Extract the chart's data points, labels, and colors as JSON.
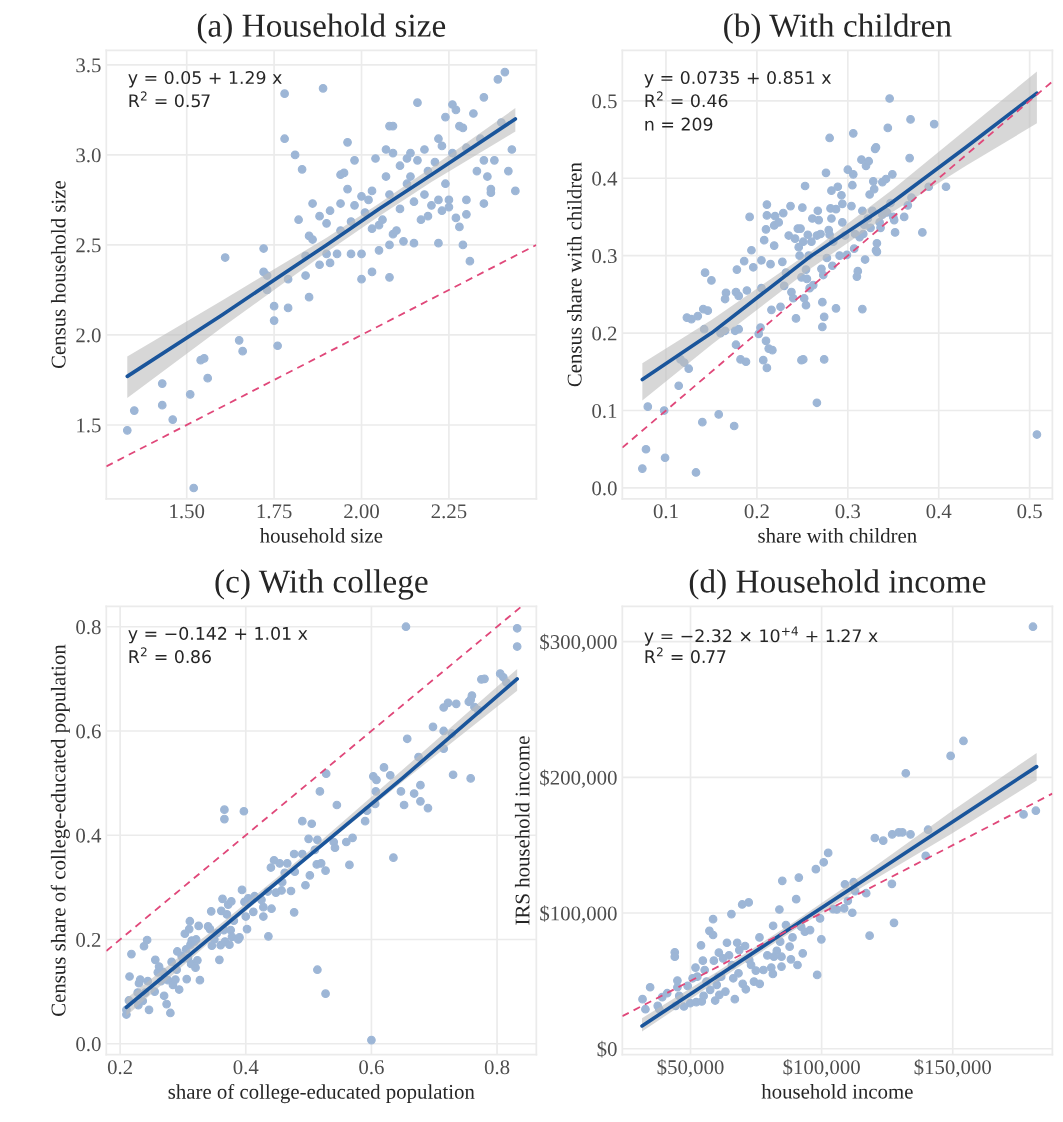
{
  "chart_data": [
    {
      "type": "scatter",
      "title": "(a) Household size",
      "xlabel": "household size",
      "ylabel": "Census household size",
      "grid": true,
      "marker": "circle",
      "xlim": [
        1.27,
        2.5
      ],
      "ylim": [
        1.09,
        3.58
      ],
      "xticks": [
        {
          "value": 1.5,
          "label": "1.50"
        },
        {
          "value": 1.75,
          "label": "1.75"
        },
        {
          "value": 2,
          "label": "2.00"
        },
        {
          "value": 2.25,
          "label": "2.25"
        }
      ],
      "yticks": [
        1.5,
        {
          "value": 2,
          "label": "2.0"
        },
        2.5,
        {
          "value": 3,
          "label": "3.0"
        },
        3.5
      ],
      "annotations": [
        "y = 0.05 + 1.29 x",
        "R$^{2}$ = 0.57"
      ],
      "series": [
        {
          "color": "#9db6d6",
          "x": [
            1.33,
            1.35,
            1.43,
            1.43,
            1.46,
            1.51,
            1.52,
            1.54,
            1.55,
            1.56,
            1.61,
            1.65,
            1.66,
            1.72,
            1.72,
            1.73,
            1.73,
            1.75,
            1.75,
            1.76,
            1.78,
            1.78,
            1.79,
            1.79,
            1.81,
            1.82,
            1.83,
            1.84,
            1.85,
            1.85,
            1.84,
            1.86,
            1.86,
            1.88,
            1.89,
            1.88,
            1.9,
            1.91,
            1.9,
            1.91,
            1.93,
            1.94,
            1.95,
            1.94,
            1.94,
            1.96,
            1.96,
            1.97,
            1.98,
            1.98,
            1.97,
            2.0,
            2.0,
            2.0,
            2.01,
            2.02,
            2.03,
            2.03,
            2.03,
            2.04,
            2.05,
            2.05,
            2.06,
            2.07,
            2.07,
            2.08,
            2.09,
            2.09,
            2.08,
            2.09,
            2.08,
            2.08,
            2.1,
            2.11,
            2.11,
            2.12,
            2.13,
            2.13,
            2.14,
            2.14,
            2.15,
            2.16,
            2.15,
            2.16,
            2.17,
            2.18,
            2.18,
            2.19,
            2.19,
            2.2,
            2.21,
            2.22,
            2.22,
            2.22,
            2.23,
            2.23,
            2.24,
            2.24,
            2.25,
            2.26,
            2.26,
            2.25,
            2.27,
            2.27,
            2.28,
            2.28,
            2.29,
            2.29,
            2.3,
            2.3,
            2.3,
            2.31,
            2.32,
            2.33,
            2.34,
            2.35,
            2.35,
            2.35,
            2.36,
            2.37,
            2.37,
            2.38,
            2.39,
            2.4,
            2.41,
            2.42,
            2.43,
            2.44
          ],
          "values": [
            1.47,
            1.58,
            1.73,
            1.61,
            1.53,
            1.67,
            1.15,
            1.86,
            1.87,
            1.76,
            2.43,
            1.97,
            1.91,
            2.48,
            2.35,
            2.33,
            2.25,
            2.16,
            2.08,
            1.94,
            3.34,
            3.09,
            2.31,
            2.15,
            3.0,
            2.64,
            2.92,
            2.44,
            2.55,
            2.21,
            2.33,
            2.73,
            2.53,
            2.66,
            3.37,
            2.39,
            2.62,
            2.69,
            2.45,
            2.4,
            2.45,
            2.89,
            2.9,
            2.73,
            2.58,
            3.07,
            2.81,
            2.45,
            2.97,
            2.72,
            2.63,
            2.77,
            2.45,
            2.31,
            2.68,
            2.75,
            2.8,
            2.59,
            2.35,
            2.98,
            2.61,
            2.47,
            2.64,
            2.88,
            3.03,
            3.16,
            3.16,
            3.01,
            2.78,
            2.56,
            2.5,
            2.32,
            2.58,
            2.7,
            2.94,
            2.52,
            2.84,
            2.98,
            3.01,
            2.88,
            2.74,
            3.29,
            2.51,
            2.97,
            2.64,
            3.03,
            2.78,
            2.91,
            2.66,
            2.72,
            2.96,
            3.09,
            2.75,
            2.51,
            3.05,
            2.69,
            3.21,
            2.84,
            2.71,
            3.28,
            3.01,
            2.75,
            3.25,
            2.65,
            3.16,
            2.6,
            3.15,
            2.5,
            3.04,
            2.75,
            2.67,
            2.41,
            3.23,
            2.91,
            3.09,
            2.97,
            3.32,
            2.73,
            2.88,
            2.79,
            2.81,
            2.97,
            3.42,
            3.18,
            3.46,
            2.91,
            3.03,
            2.8
          ]
        },
        {
          "type": "line",
          "marker": "none",
          "color": "#1a559b",
          "x": [
            1.33,
            1.6,
            1.9,
            2.05,
            2.2,
            2.44
          ],
          "values": [
            1.77,
            2.11,
            2.5,
            2.7,
            2.89,
            3.2
          ],
          "lower": [
            1.65,
            2.04,
            2.46,
            2.66,
            2.85,
            3.13
          ],
          "upper": [
            1.88,
            2.19,
            2.54,
            2.73,
            2.93,
            3.26
          ]
        },
        {
          "type": "line",
          "marker": "none",
          "color": "#e0487a",
          "line_style": "dashed",
          "x": [
            1.27,
            2.5
          ],
          "values": [
            1.27,
            2.5
          ]
        }
      ]
    },
    {
      "type": "scatter",
      "title": "(b) With children",
      "xlabel": "share with children",
      "ylabel": "Census share with children",
      "grid": true,
      "marker": "circle",
      "xlim": [
        0.052,
        0.525
      ],
      "ylim": [
        -0.014,
        0.565
      ],
      "xticks": [
        0.1,
        0.2,
        0.3,
        0.4,
        0.5
      ],
      "yticks": [
        {
          "value": 0,
          "label": "0.0"
        },
        0.1,
        0.2,
        0.3,
        0.4,
        0.5
      ],
      "annotations": [
        "y = 0.0735 + 0.851 x",
        "R$^{2}$ = 0.46",
        "n = 209"
      ],
      "series": [
        {
          "color": "#9db6d6",
          "x": [
            0.074,
            0.078,
            0.08,
            0.098,
            0.099,
            0.114,
            0.116,
            0.12,
            0.123,
            0.125,
            0.128,
            0.133,
            0.135,
            0.14,
            0.141,
            0.142,
            0.143,
            0.146,
            0.15,
            0.158,
            0.16,
            0.165,
            0.166,
            0.165,
            0.175,
            0.176,
            0.177,
            0.177,
            0.178,
            0.18,
            0.18,
            0.182,
            0.186,
            0.188,
            0.189,
            0.192,
            0.194,
            0.196,
            0.202,
            0.204,
            0.205,
            0.205,
            0.207,
            0.208,
            0.21,
            0.21,
            0.211,
            0.211,
            0.211,
            0.213,
            0.215,
            0.216,
            0.217,
            0.219,
            0.219,
            0.22,
            0.224,
            0.226,
            0.228,
            0.229,
            0.23,
            0.232,
            0.235,
            0.237,
            0.238,
            0.24,
            0.242,
            0.243,
            0.245,
            0.246,
            0.247,
            0.248,
            0.249,
            0.249,
            0.251,
            0.25,
            0.251,
            0.252,
            0.253,
            0.254,
            0.254,
            0.255,
            0.256,
            0.257,
            0.258,
            0.26,
            0.261,
            0.262,
            0.266,
            0.266,
            0.267,
            0.268,
            0.27,
            0.271,
            0.272,
            0.272,
            0.273,
            0.274,
            0.274,
            0.276,
            0.277,
            0.279,
            0.28,
            0.28,
            0.281,
            0.282,
            0.282,
            0.283,
            0.284,
            0.287,
            0.287,
            0.289,
            0.291,
            0.293,
            0.294,
            0.294,
            0.297,
            0.299,
            0.3,
            0.304,
            0.305,
            0.306,
            0.306,
            0.307,
            0.308,
            0.31,
            0.311,
            0.313,
            0.315,
            0.316,
            0.316,
            0.317,
            0.318,
            0.319,
            0.32,
            0.322,
            0.323,
            0.324,
            0.325,
            0.327,
            0.328,
            0.329,
            0.33,
            0.331,
            0.331,
            0.332,
            0.332,
            0.335,
            0.336,
            0.338,
            0.338,
            0.342,
            0.343,
            0.344,
            0.346,
            0.347,
            0.349,
            0.35,
            0.351,
            0.352,
            0.362,
            0.366,
            0.368,
            0.369,
            0.37,
            0.382,
            0.389,
            0.395,
            0.408,
            0.508
          ],
          "values": [
            0.025,
            0.05,
            0.105,
            0.1,
            0.039,
            0.132,
            0.166,
            0.162,
            0.22,
            0.154,
            0.218,
            0.02,
            0.222,
            0.085,
            0.231,
            0.205,
            0.278,
            0.229,
            0.268,
            0.095,
            0.2,
            0.203,
            0.252,
            0.244,
            0.08,
            0.203,
            0.185,
            0.253,
            0.282,
            0.248,
            0.205,
            0.166,
            0.293,
            0.163,
            0.255,
            0.35,
            0.307,
            0.285,
            0.199,
            0.207,
            0.294,
            0.258,
            0.165,
            0.32,
            0.334,
            0.19,
            0.366,
            0.352,
            0.155,
            0.18,
            0.289,
            0.23,
            0.178,
            0.313,
            0.339,
            0.351,
            0.343,
            0.234,
            0.292,
            0.355,
            0.261,
            0.278,
            0.326,
            0.364,
            0.253,
            0.245,
            0.322,
            0.219,
            0.335,
            0.311,
            0.3,
            0.335,
            0.272,
            0.165,
            0.166,
            0.362,
            0.318,
            0.245,
            0.39,
            0.282,
            0.236,
            0.27,
            0.327,
            0.3,
            0.258,
            0.318,
            0.348,
            0.262,
            0.326,
            0.11,
            0.358,
            0.346,
            0.328,
            0.283,
            0.24,
            0.208,
            0.275,
            0.221,
            0.166,
            0.407,
            0.297,
            0.333,
            0.452,
            0.327,
            0.361,
            0.384,
            0.348,
            0.287,
            0.318,
            0.36,
            0.232,
            0.389,
            0.3,
            0.378,
            0.367,
            0.343,
            0.326,
            0.301,
            0.411,
            0.364,
            0.391,
            0.405,
            0.458,
            0.309,
            0.328,
            0.273,
            0.28,
            0.324,
            0.424,
            0.358,
            0.231,
            0.328,
            0.34,
            0.295,
            0.416,
            0.348,
            0.422,
            0.379,
            0.336,
            0.358,
            0.396,
            0.386,
            0.438,
            0.44,
            0.307,
            0.305,
            0.316,
            0.343,
            0.336,
            0.353,
            0.395,
            0.399,
            0.356,
            0.465,
            0.503,
            0.368,
            0.405,
            0.35,
            0.346,
            0.33,
            0.35,
            0.365,
            0.426,
            0.476,
            0.375,
            0.33,
            0.389,
            0.47,
            0.389,
            0.069
          ]
        },
        {
          "type": "line",
          "marker": "none",
          "color": "#1a559b",
          "x": [
            0.074,
            0.15,
            0.26,
            0.35,
            0.43,
            0.508
          ],
          "values": [
            0.14,
            0.2,
            0.3,
            0.37,
            0.44,
            0.51
          ],
          "lower": [
            0.113,
            0.185,
            0.284,
            0.357,
            0.416,
            0.471
          ],
          "upper": [
            0.161,
            0.217,
            0.306,
            0.386,
            0.463,
            0.538
          ]
        },
        {
          "type": "line",
          "marker": "none",
          "color": "#e0487a",
          "line_style": "dashed",
          "x": [
            0.052,
            0.525
          ],
          "values": [
            0.052,
            0.525
          ]
        }
      ]
    },
    {
      "type": "scatter",
      "title": "(c) With college",
      "xlabel": "share of college-educated population",
      "ylabel": "Census share of college-educated population",
      "grid": true,
      "marker": "circle",
      "xlim": [
        0.178,
        0.8625
      ],
      "ylim": [
        -0.021,
        0.839
      ],
      "xticks": [
        0.2,
        0.4,
        0.6,
        0.8
      ],
      "yticks": [
        {
          "value": 0,
          "label": "0.0"
        },
        0.2,
        0.4,
        0.6,
        0.8
      ],
      "annotations": [
        "y = −0.142 + 1.01 x",
        "R$^{2}$ = 0.86"
      ],
      "series": [
        {
          "color": "#9db6d6",
          "x": [
            0.21,
            0.21,
            0.214,
            0.215,
            0.218,
            0.228,
            0.229,
            0.23,
            0.232,
            0.236,
            0.238,
            0.24,
            0.243,
            0.244,
            0.246,
            0.255,
            0.256,
            0.26,
            0.262,
            0.265,
            0.268,
            0.27,
            0.274,
            0.276,
            0.28,
            0.282,
            0.284,
            0.288,
            0.29,
            0.291,
            0.294,
            0.298,
            0.3,
            0.303,
            0.305,
            0.306,
            0.308,
            0.31,
            0.311,
            0.312,
            0.313,
            0.314,
            0.318,
            0.32,
            0.321,
            0.323,
            0.325,
            0.327,
            0.34,
            0.343,
            0.345,
            0.346,
            0.35,
            0.354,
            0.358,
            0.36,
            0.361,
            0.363,
            0.365,
            0.366,
            0.366,
            0.367,
            0.37,
            0.372,
            0.374,
            0.376,
            0.377,
            0.378,
            0.381,
            0.388,
            0.39,
            0.394,
            0.397,
            0.398,
            0.4,
            0.402,
            0.404,
            0.412,
            0.414,
            0.425,
            0.428,
            0.428,
            0.435,
            0.436,
            0.44,
            0.441,
            0.445,
            0.448,
            0.454,
            0.457,
            0.458,
            0.462,
            0.466,
            0.472,
            0.477,
            0.477,
            0.478,
            0.49,
            0.49,
            0.495,
            0.5,
            0.502,
            0.505,
            0.51,
            0.513,
            0.514,
            0.514,
            0.518,
            0.52,
            0.527,
            0.527,
            0.528,
            0.54,
            0.542,
            0.545,
            0.56,
            0.565,
            0.57,
            0.59,
            0.593,
            0.6,
            0.603,
            0.606,
            0.607,
            0.608,
            0.62,
            0.63,
            0.635,
            0.647,
            0.652,
            0.655,
            0.657,
            0.668,
            0.675,
            0.678,
            0.678,
            0.69,
            0.698,
            0.715,
            0.715,
            0.715,
            0.722,
            0.728,
            0.73,
            0.735,
            0.755,
            0.758,
            0.758,
            0.76,
            0.764,
            0.77,
            0.775,
            0.78,
            0.805,
            0.81,
            0.815,
            0.832,
            0.832
          ],
          "values": [
            0.065,
            0.056,
            0.083,
            0.129,
            0.172,
            0.098,
            0.074,
            0.116,
            0.123,
            0.082,
            0.187,
            0.098,
            0.199,
            0.12,
            0.065,
            0.1,
            0.161,
            0.137,
            0.148,
            0.12,
            0.138,
            0.092,
            0.076,
            0.122,
            0.059,
            0.157,
            0.113,
            0.123,
            0.142,
            0.177,
            0.104,
            0.168,
            0.163,
            0.211,
            0.181,
            0.124,
            0.164,
            0.22,
            0.235,
            0.19,
            0.153,
            0.198,
            0.196,
            0.146,
            0.2,
            0.16,
            0.226,
            0.122,
            0.225,
            0.22,
            0.254,
            0.188,
            0.2,
            0.212,
            0.161,
            0.189,
            0.255,
            0.278,
            0.218,
            0.449,
            0.431,
            0.196,
            0.248,
            0.267,
            0.19,
            0.218,
            0.273,
            0.205,
            0.236,
            0.2,
            0.204,
            0.295,
            0.446,
            0.272,
            0.244,
            0.22,
            0.279,
            0.253,
            0.283,
            0.276,
            0.262,
            0.244,
            0.292,
            0.206,
            0.338,
            0.259,
            0.352,
            0.29,
            0.346,
            0.294,
            0.31,
            0.328,
            0.346,
            0.293,
            0.364,
            0.252,
            0.33,
            0.364,
            0.427,
            0.304,
            0.393,
            0.323,
            0.422,
            0.372,
            0.344,
            0.391,
            0.142,
            0.484,
            0.346,
            0.332,
            0.096,
            0.518,
            0.387,
            0.376,
            0.458,
            0.387,
            0.343,
            0.395,
            0.427,
            0.447,
            0.007,
            0.513,
            0.46,
            0.484,
            0.506,
            0.53,
            0.515,
            0.357,
            0.484,
            0.458,
            0.8,
            0.585,
            0.48,
            0.55,
            0.496,
            0.465,
            0.452,
            0.608,
            0.6,
            0.645,
            0.566,
            0.654,
            0.595,
            0.516,
            0.652,
            0.656,
            0.66,
            0.509,
            0.668,
            0.646,
            0.64,
            0.699,
            0.7,
            0.71,
            0.703,
            0.693,
            0.797,
            0.762
          ]
        },
        {
          "type": "line",
          "marker": "none",
          "color": "#1a559b",
          "x": [
            0.21,
            0.35,
            0.5,
            0.65,
            0.832
          ],
          "values": [
            0.07,
            0.21,
            0.36,
            0.51,
            0.7
          ],
          "lower": [
            0.053,
            0.203,
            0.357,
            0.503,
            0.677
          ],
          "upper": [
            0.087,
            0.22,
            0.369,
            0.526,
            0.719
          ]
        },
        {
          "type": "line",
          "marker": "none",
          "color": "#e0487a",
          "line_style": "dashed",
          "x": [
            0.178,
            0.839
          ],
          "values": [
            0.178,
            0.839
          ]
        }
      ]
    },
    {
      "type": "scatter",
      "title": "(d) Household income",
      "xlabel": "household income",
      "ylabel": "IRS household income",
      "grid": true,
      "marker": "circle",
      "xlim": [
        24000,
        188000
      ],
      "ylim": [
        -4400,
        326000
      ],
      "xticks": [
        {
          "value": 50000,
          "label": "$50,000"
        },
        {
          "value": 100000,
          "label": "$100,000"
        },
        {
          "value": 150000,
          "label": "$150,000"
        }
      ],
      "yticks": [
        {
          "value": 0,
          "label": "$0"
        },
        {
          "value": 100000,
          "label": "$100,000"
        },
        {
          "value": 200000,
          "label": "$200,000"
        },
        {
          "value": 300000,
          "label": "$300,000"
        }
      ],
      "annotations": [
        "y = −2.32 × 10$^{+4}$ + 1.27 x",
        "R$^{2}$ = 0.77"
      ],
      "series": [
        {
          "color": "#9db6d6",
          "x": [
            31700,
            32800,
            34600,
            37500,
            38100,
            39200,
            41100,
            44000,
            44000,
            44300,
            45000,
            45000,
            45700,
            47500,
            48900,
            49900,
            50800,
            51900,
            52200,
            52600,
            54000,
            54300,
            54700,
            55000,
            55400,
            56100,
            57200,
            57500,
            58600,
            58600,
            58900,
            59400,
            60000,
            60600,
            60800,
            61000,
            61700,
            62400,
            63300,
            63900,
            64700,
            65600,
            65800,
            66300,
            66900,
            67800,
            68300,
            68600,
            69700,
            69900,
            70800,
            71100,
            72200,
            72400,
            73100,
            74200,
            74900,
            76300,
            76400,
            77800,
            79300,
            80800,
            81400,
            81500,
            81800,
            82900,
            83900,
            84200,
            84700,
            84700,
            85000,
            86400,
            87800,
            88300,
            88900,
            90300,
            90800,
            91300,
            92200,
            92800,
            93600,
            95600,
            97800,
            98300,
            99400,
            99900,
            100800,
            102500,
            104400,
            105800,
            108600,
            108900,
            110000,
            111700,
            112200,
            112800,
            117000,
            118300,
            120300,
            123500,
            126800,
            126900,
            127600,
            129400,
            130800,
            132100,
            133900,
            139700,
            140600,
            149200,
            154100,
            177000,
            180600,
            181700
          ],
          "values": [
            36500,
            29100,
            45300,
            31600,
            29100,
            38000,
            40900,
            71000,
            67800,
            31600,
            50200,
            45300,
            38900,
            31100,
            46300,
            33600,
            51900,
            59800,
            34300,
            53100,
            76200,
            34800,
            64900,
            38900,
            58000,
            49500,
            86900,
            43400,
            95500,
            83800,
            64900,
            35500,
            47000,
            52700,
            70800,
            39700,
            53100,
            66600,
            42100,
            78100,
            68800,
            99200,
            61700,
            51900,
            36500,
            78100,
            55600,
            72700,
            106300,
            47800,
            75700,
            43800,
            107800,
            65400,
            61700,
            49500,
            57600,
            82000,
            47800,
            58000,
            68800,
            59800,
            55100,
            90600,
            67800,
            72200,
            102600,
            78900,
            67800,
            60500,
            123700,
            91100,
            75200,
            65900,
            82000,
            110200,
            61700,
            126100,
            89900,
            70300,
            86200,
            87400,
            132300,
            54400,
            96000,
            80600,
            137400,
            144300,
            102900,
            102600,
            103400,
            121200,
            109000,
            100200,
            122700,
            116100,
            114600,
            83300,
            155300,
            153300,
            121500,
            158000,
            92800,
            159400,
            159400,
            203000,
            158000,
            142100,
            161400,
            215800,
            226800,
            172700,
            311000,
            175400
          ]
        },
        {
          "type": "line",
          "marker": "none",
          "color": "#1a559b",
          "x": [
            31500,
            60000,
            90000,
            120000,
            150000,
            182000
          ],
          "values": [
            16800,
            53000,
            91100,
            129200,
            167300,
            207900
          ],
          "lower": [
            12700,
            49500,
            88000,
            124500,
            159000,
            197600
          ],
          "upper": [
            22500,
            56500,
            94200,
            134000,
            175500,
            218000
          ]
        },
        {
          "type": "line",
          "marker": "none",
          "color": "#e0487a",
          "line_style": "dashed",
          "x": [
            24000,
            188000
          ],
          "values": [
            24000,
            188000
          ]
        }
      ]
    }
  ]
}
